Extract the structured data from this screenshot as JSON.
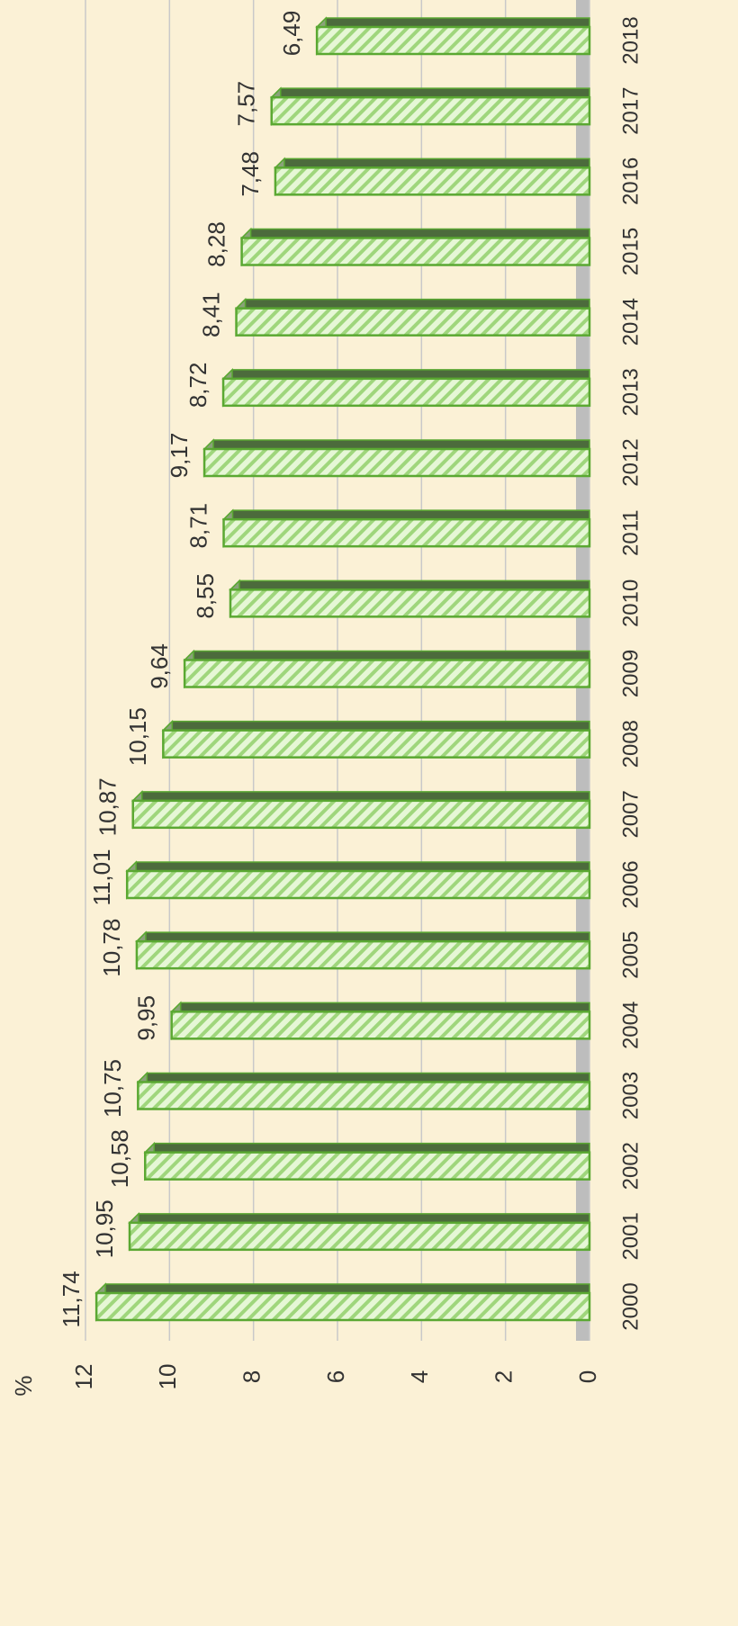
{
  "chart_data": {
    "type": "bar",
    "orientation": "horizontal",
    "y_label": "%",
    "categories": [
      "2000",
      "2001",
      "2002",
      "2003",
      "2004",
      "2005",
      "2006",
      "2007",
      "2008",
      "2009",
      "2010",
      "2011",
      "2012",
      "2013",
      "2014",
      "2015",
      "2016",
      "2017",
      "2018"
    ],
    "values": [
      11.74,
      10.95,
      10.58,
      10.75,
      9.95,
      10.78,
      11.01,
      10.87,
      10.15,
      9.64,
      8.55,
      8.71,
      9.17,
      8.72,
      8.41,
      8.28,
      7.48,
      7.57,
      6.49
    ],
    "value_labels": [
      "11,74",
      "10,95",
      "10,58",
      "10,75",
      "9,95",
      "10,78",
      "11,01",
      "10,87",
      "10,15",
      "9,64",
      "8,55",
      "8,71",
      "9,17",
      "8,72",
      "8,41",
      "8,28",
      "7,48",
      "7,57",
      "6,49"
    ],
    "color": "#c8eeb0",
    "edge_color": "#5aa832",
    "ylim": [
      0,
      12
    ],
    "yticks": [
      0,
      2,
      4,
      6,
      8,
      10,
      12
    ],
    "grid": true
  }
}
